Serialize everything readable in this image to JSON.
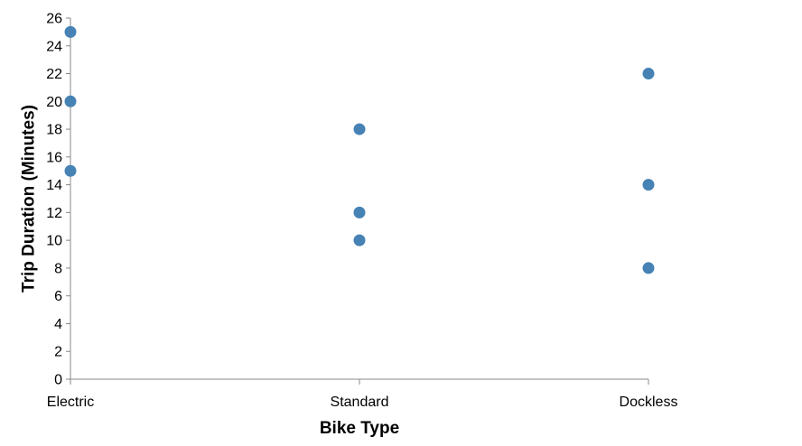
{
  "chart_data": {
    "type": "scatter",
    "title": "",
    "xlabel": "Bike Type",
    "ylabel": "Trip Duration (Minutes)",
    "categories": [
      "Electric",
      "Standard",
      "Dockless"
    ],
    "ylim": [
      0,
      26
    ],
    "yticks": [
      0,
      2,
      4,
      6,
      8,
      10,
      12,
      14,
      16,
      18,
      20,
      22,
      24,
      26
    ],
    "grid": false,
    "point_color": "#4682b4",
    "points": [
      {
        "x": "Electric",
        "y": 15
      },
      {
        "x": "Electric",
        "y": 20
      },
      {
        "x": "Electric",
        "y": 25
      },
      {
        "x": "Standard",
        "y": 10
      },
      {
        "x": "Standard",
        "y": 12
      },
      {
        "x": "Standard",
        "y": 18
      },
      {
        "x": "Dockless",
        "y": 8
      },
      {
        "x": "Dockless",
        "y": 14
      },
      {
        "x": "Dockless",
        "y": 22
      }
    ]
  }
}
